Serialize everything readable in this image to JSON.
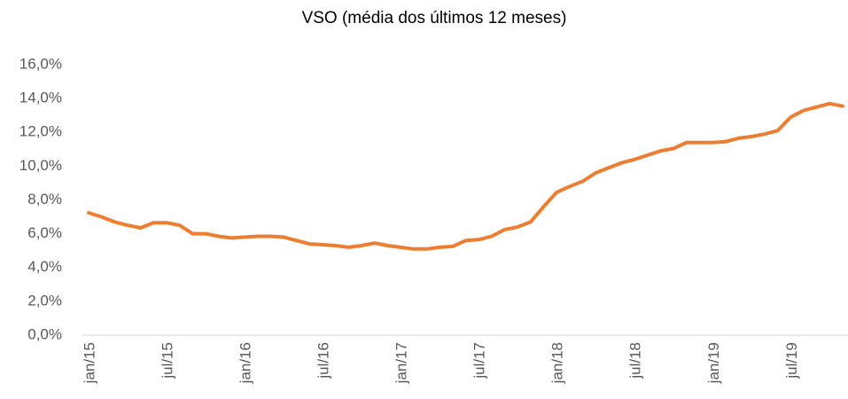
{
  "chart_data": {
    "type": "line",
    "title": "VSO (média dos últimos 12 meses)",
    "categories": [
      "jan/15",
      null,
      null,
      null,
      null,
      null,
      "jul/15",
      null,
      null,
      null,
      null,
      null,
      "jan/16",
      null,
      null,
      null,
      null,
      null,
      "jul/16",
      null,
      null,
      null,
      null,
      null,
      "jan/17",
      null,
      null,
      null,
      null,
      null,
      "jul/17",
      null,
      null,
      null,
      null,
      null,
      "jan/18",
      null,
      null,
      null,
      null,
      null,
      "jul/18",
      null,
      null,
      null,
      null,
      null,
      "jan/19",
      null,
      null,
      null,
      null,
      null,
      "jul/19",
      null,
      null,
      null,
      null
    ],
    "series": [
      {
        "name": "VSO",
        "color": "#ed7d31",
        "values": [
          7.24,
          7.0,
          6.7,
          6.5,
          6.35,
          6.65,
          6.65,
          6.5,
          6.0,
          6.0,
          5.85,
          5.75,
          5.8,
          5.85,
          5.85,
          5.8,
          5.6,
          5.4,
          5.35,
          5.3,
          5.2,
          5.3,
          5.45,
          5.3,
          5.2,
          5.1,
          5.1,
          5.2,
          5.25,
          5.6,
          5.65,
          5.85,
          6.25,
          6.4,
          6.7,
          7.6,
          8.45,
          8.8,
          9.1,
          9.6,
          9.9,
          10.2,
          10.4,
          10.65,
          10.9,
          11.05,
          11.4,
          11.4,
          11.4,
          11.45,
          11.65,
          11.75,
          11.9,
          12.1,
          12.9,
          13.3,
          13.5,
          13.7,
          13.55
        ]
      }
    ],
    "ylim": [
      0,
      16
    ],
    "yticks": [
      {
        "value": 0,
        "label": "0,0%"
      },
      {
        "value": 2,
        "label": "2,0%"
      },
      {
        "value": 4,
        "label": "4,0%"
      },
      {
        "value": 6,
        "label": "6,0%"
      },
      {
        "value": 8,
        "label": "8,0%"
      },
      {
        "value": 10,
        "label": "10,0%"
      },
      {
        "value": 12,
        "label": "12,0%"
      },
      {
        "value": 14,
        "label": "14,0%"
      },
      {
        "value": 16,
        "label": "16,0%"
      }
    ],
    "grid": false
  }
}
